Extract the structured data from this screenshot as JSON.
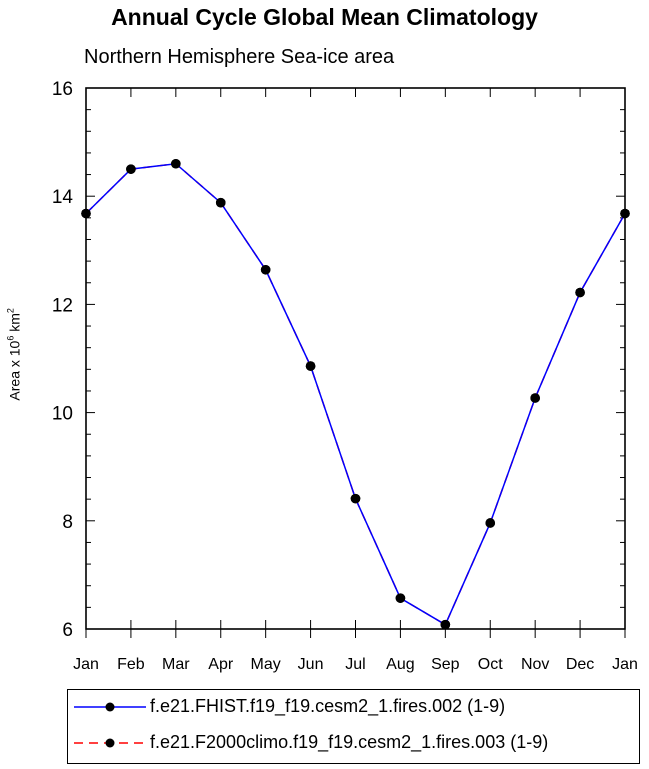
{
  "chart_data": {
    "type": "line",
    "title": "Annual Cycle Global Mean Climatology",
    "subtitle": "Northern Hemisphere Sea-ice area",
    "ylabel": {
      "prefix": "Area x 10",
      "exp1": "6",
      "mid": " km",
      "exp2": "2"
    },
    "xlabel": "",
    "categories": [
      "Jan",
      "Feb",
      "Mar",
      "Apr",
      "May",
      "Jun",
      "Jul",
      "Aug",
      "Sep",
      "Oct",
      "Nov",
      "Dec",
      "Jan"
    ],
    "ylim": [
      6,
      16
    ],
    "yticks": [
      6,
      8,
      10,
      12,
      14,
      16
    ],
    "grid": false,
    "legend_placement": "bottom",
    "series": [
      {
        "name": "f.e21.FHIST.f19_f19.cesm2_1.fires.002 (1-9)",
        "color": "#0000ff",
        "dash": "solid",
        "marker": "filled-circle",
        "values": [
          13.68,
          14.5,
          14.6,
          13.88,
          12.64,
          10.86,
          8.41,
          6.57,
          6.08,
          7.96,
          10.27,
          12.22,
          13.68
        ]
      },
      {
        "name": "f.e21.F2000climo.f19_f19.cesm2_1.fires.003 (1-9)",
        "color": "#ff0000",
        "dash": "dashed",
        "marker": "filled-circle",
        "values": [
          13.68,
          14.5,
          14.6,
          13.88,
          12.64,
          10.86,
          8.41,
          6.57,
          6.08,
          7.96,
          10.27,
          12.22,
          13.68
        ]
      }
    ]
  }
}
